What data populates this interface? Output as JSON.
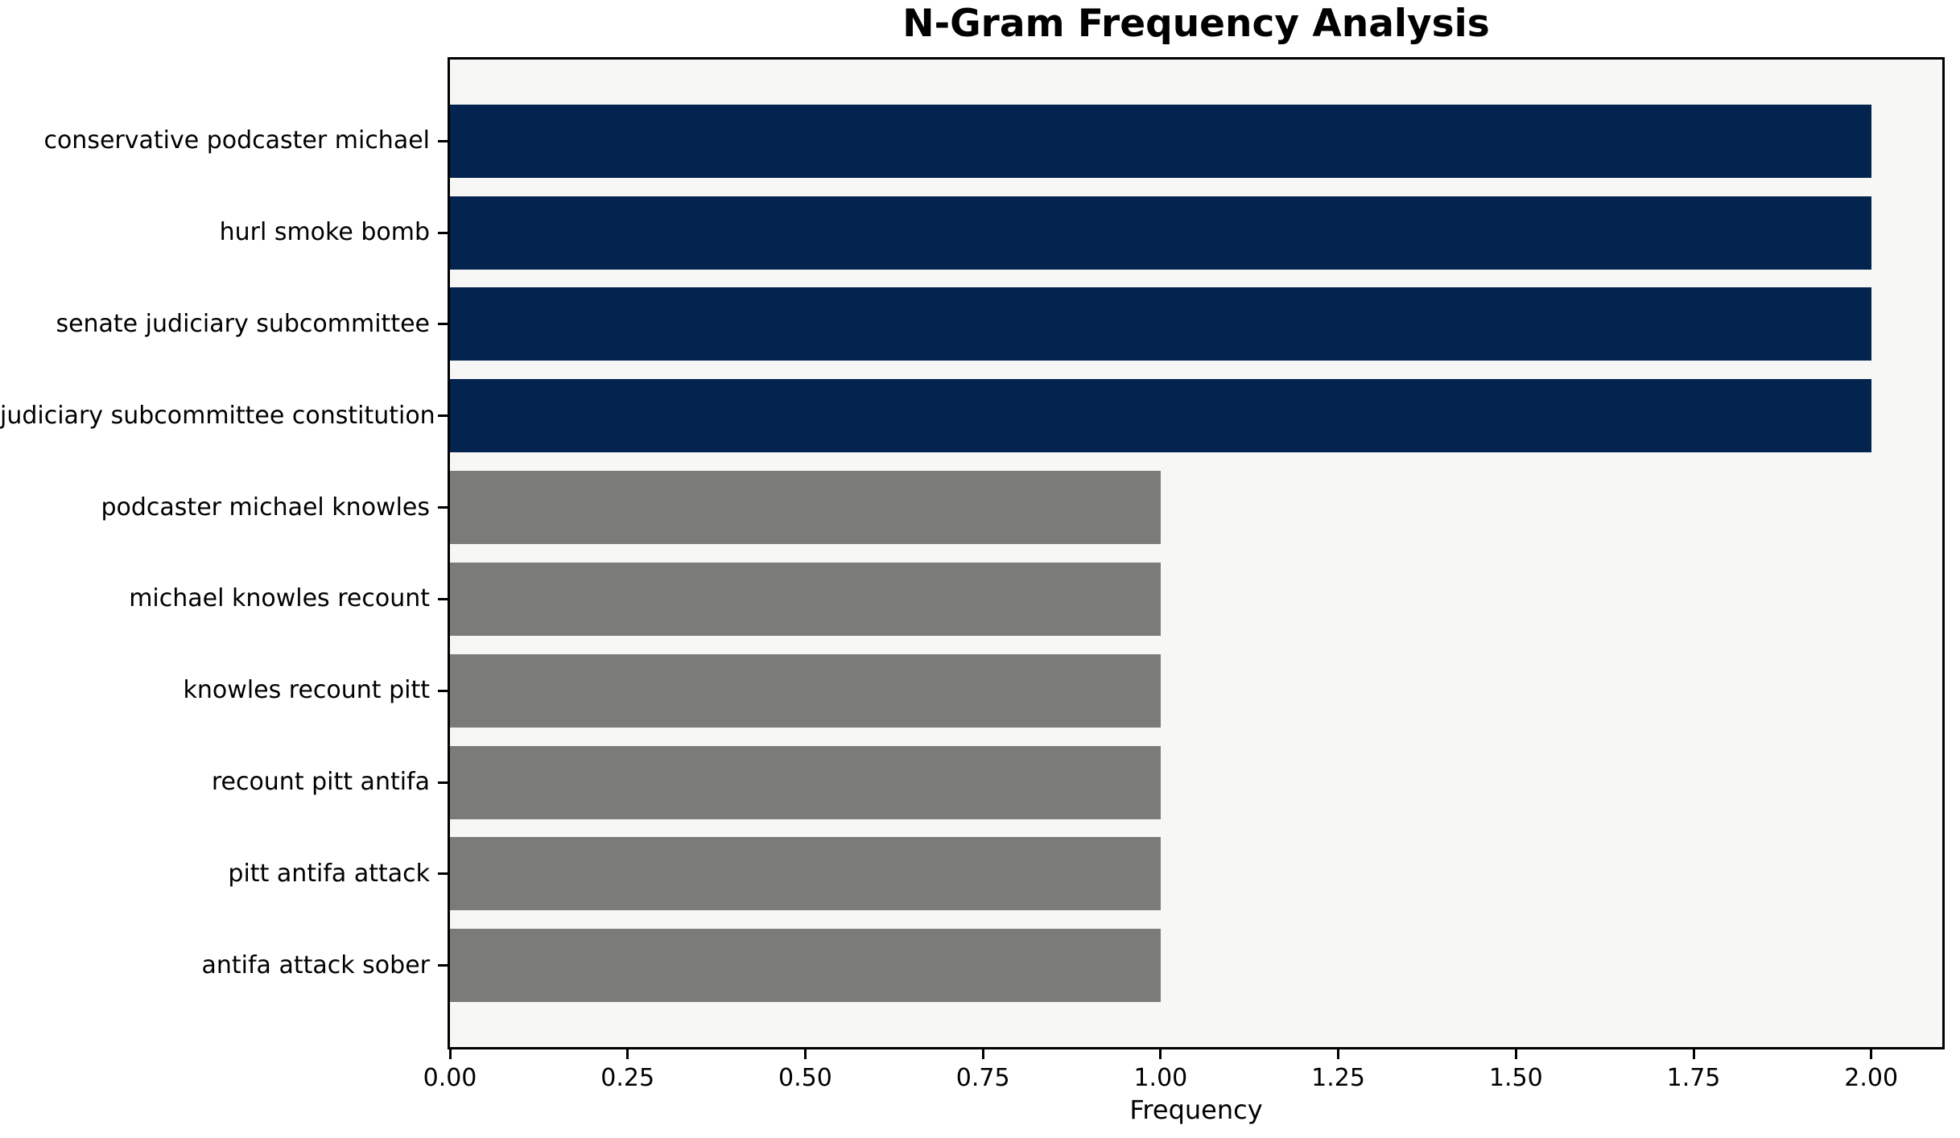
{
  "chart_data": {
    "type": "bar",
    "orientation": "horizontal",
    "title": "N-Gram Frequency Analysis",
    "xlabel": "Frequency",
    "ylabel": "",
    "categories": [
      "conservative podcaster michael",
      "hurl smoke bomb",
      "senate judiciary subcommittee",
      "judiciary subcommittee constitution",
      "podcaster michael knowles",
      "michael knowles recount",
      "knowles recount pitt",
      "recount pitt antifa",
      "pitt antifa attack",
      "antifa attack sober"
    ],
    "values": [
      2,
      2,
      2,
      2,
      1,
      1,
      1,
      1,
      1,
      1
    ],
    "bar_colors": [
      "#02244E",
      "#02244E",
      "#02244E",
      "#02244E",
      "#7B7B78",
      "#7B7B78",
      "#7B7B78",
      "#7B7B78",
      "#7B7B78",
      "#7B7B78"
    ],
    "xlim": [
      0,
      2.1
    ],
    "xticks": [
      0,
      0.25,
      0.5,
      0.75,
      1.0,
      1.25,
      1.5,
      1.75,
      2.0
    ],
    "xtick_labels": [
      "0.00",
      "0.25",
      "0.50",
      "0.75",
      "1.00",
      "1.25",
      "1.50",
      "1.75",
      "2.00"
    ],
    "grid": false,
    "legend": null,
    "bar_height_fraction": 0.8,
    "colors": {
      "high_freq_bar": "#02244E",
      "low_freq_bar": "#7B7B78",
      "plot_background": "#F7F7F6",
      "figure_background": "#FFFFFF",
      "frame": "#000000",
      "text": "#000000"
    }
  }
}
